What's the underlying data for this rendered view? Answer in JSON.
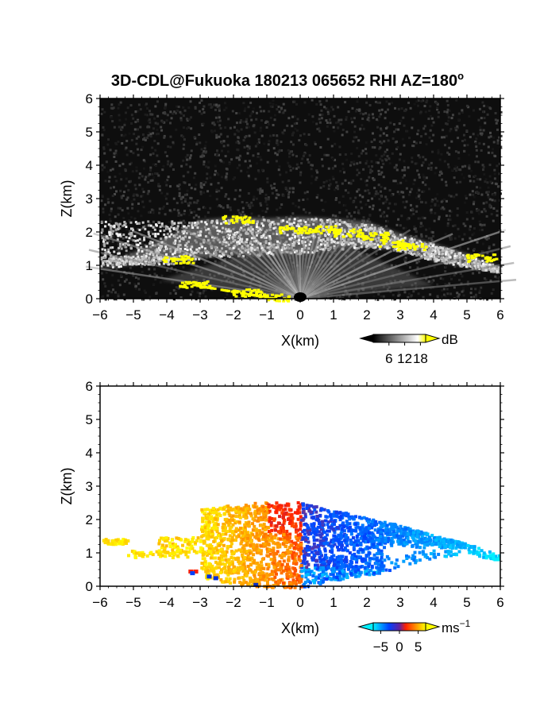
{
  "chart_data": [
    {
      "type": "heatmap",
      "panel": "top",
      "title": "3D-CDL@Fukuoka 180213 065652 RHI AZ=180",
      "title_superscript": "o",
      "xlabel": "X(km)",
      "ylabel": "Z(km)",
      "xlim": [
        -6,
        6
      ],
      "ylim": [
        0,
        6
      ],
      "xticks": [
        -6,
        -5,
        -4,
        -3,
        -2,
        -1,
        0,
        1,
        2,
        3,
        4,
        5,
        6
      ],
      "yticks": [
        0,
        1,
        2,
        3,
        4,
        5,
        6
      ],
      "background_color": "#0d0d0d",
      "colorbar": {
        "unit": "dB",
        "ticks": [
          6,
          12,
          18
        ],
        "range": [
          0,
          20
        ],
        "colors": [
          "#000000",
          "#ffffff",
          "#ffff00"
        ]
      },
      "features": {
        "cloud_layer_top_km": [
          [
            -3.0,
            2.35
          ],
          [
            -1.9,
            2.45
          ],
          [
            -1.0,
            2.4
          ],
          [
            0,
            2.45
          ],
          [
            1,
            2.4
          ],
          [
            2,
            2.3
          ],
          [
            3,
            1.95
          ],
          [
            4,
            1.65
          ],
          [
            5,
            1.35
          ],
          [
            6,
            0.95
          ]
        ],
        "cloud_layer_bottom_km": [
          [
            -6.0,
            0.9
          ],
          [
            -4.0,
            1.15
          ],
          [
            -2.0,
            1.3
          ],
          [
            0,
            1.35
          ],
          [
            1,
            1.5
          ],
          [
            2,
            1.55
          ],
          [
            3,
            1.45
          ],
          [
            4,
            1.15
          ],
          [
            5,
            0.95
          ],
          [
            6,
            0.8
          ]
        ],
        "yellow_patches_km": [
          [
            -1.9,
            2.4
          ],
          [
            -0.2,
            2.1
          ],
          [
            0.6,
            2.1
          ],
          [
            1.4,
            2.0
          ],
          [
            2.2,
            1.9
          ],
          [
            2.8,
            1.7
          ],
          [
            3.3,
            1.6
          ],
          [
            5.4,
            1.25
          ],
          [
            -3.7,
            1.2
          ],
          [
            -3.2,
            0.45
          ],
          [
            -1.6,
            0.2
          ],
          [
            -0.8,
            0.05
          ]
        ]
      }
    },
    {
      "type": "heatmap",
      "panel": "bottom",
      "xlabel": "X(km)",
      "ylabel": "Z(km)",
      "xlim": [
        -6,
        6
      ],
      "ylim": [
        0,
        6
      ],
      "xticks": [
        -6,
        -5,
        -4,
        -3,
        -2,
        -1,
        0,
        1,
        2,
        3,
        4,
        5,
        6
      ],
      "yticks": [
        0,
        1,
        2,
        3,
        4,
        5,
        6
      ],
      "background_color": "#ffffff",
      "colorbar": {
        "unit": "ms",
        "unit_superscript": "−1",
        "ticks": [
          "−5",
          "0",
          "5"
        ],
        "range": [
          -7,
          7
        ],
        "colors": [
          "#00f0ff",
          "#0040ff",
          "#ff2000",
          "#ffff00"
        ]
      },
      "features": {
        "negative_velocity_region": "x > 0 (blue, toward radar)",
        "positive_velocity_region": "x < 0 (red/orange/yellow, away)"
      }
    }
  ]
}
